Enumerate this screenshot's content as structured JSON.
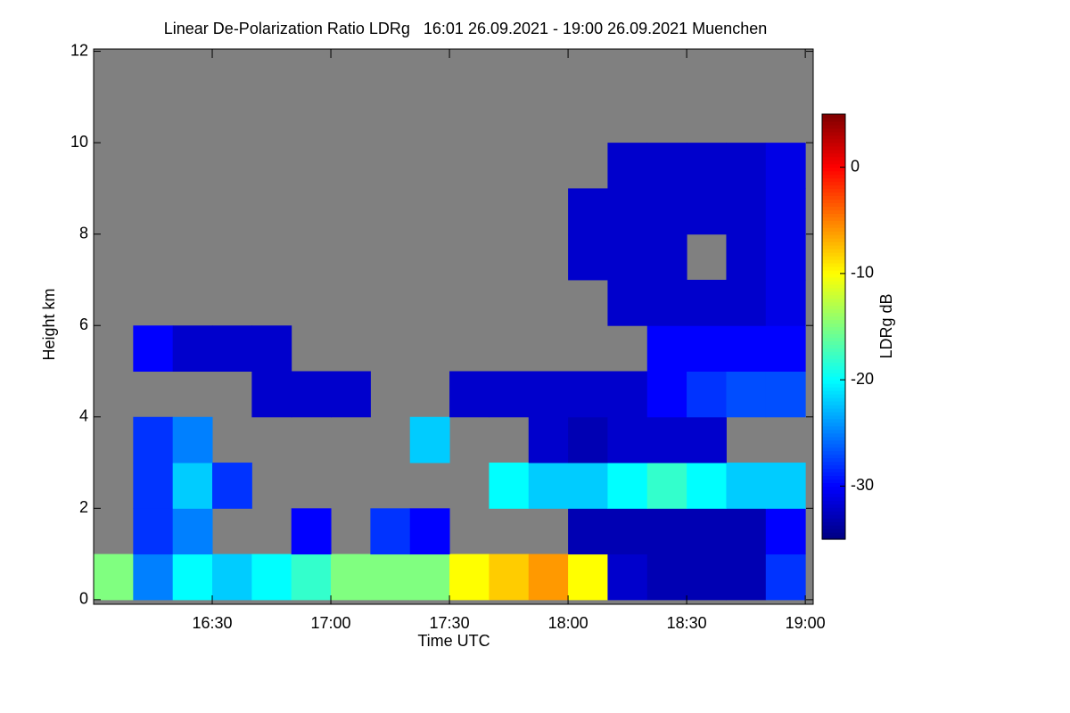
{
  "chart_data": {
    "type": "heatmap",
    "title": "Linear De-Polarization Ratio LDRg   16:01 26.09.2021 - 19:00 26.09.2021 Muenchen",
    "x_label": "Time UTC",
    "y_label": "Height km",
    "colorbar_label": "LDRg dB",
    "missing_color": "#808080",
    "colormap": "jet",
    "x_edges": [
      960,
      970,
      980,
      990,
      1000,
      1010,
      1020,
      1030,
      1040,
      1050,
      1060,
      1070,
      1080,
      1090,
      1100,
      1110,
      1120,
      1130,
      1140
    ],
    "y_edges": [
      0,
      1,
      2,
      3,
      4,
      5,
      6,
      7,
      8,
      9,
      10,
      11,
      12
    ],
    "values": [
      [
        -15,
        -25,
        -20,
        -22,
        -20,
        -18,
        -15,
        -15,
        -15,
        -10,
        -8,
        -6,
        -10,
        -32,
        -33,
        -33,
        -33,
        -28
      ],
      [
        null,
        -28,
        -25,
        null,
        null,
        -30,
        null,
        -28,
        -30,
        null,
        null,
        null,
        -33,
        -33,
        -33,
        -33,
        -33,
        -30
      ],
      [
        null,
        -28,
        -22,
        -28,
        null,
        null,
        null,
        null,
        null,
        null,
        -20,
        -22,
        -22,
        -20,
        -18,
        -20,
        -22,
        -22
      ],
      [
        null,
        -28,
        -25,
        null,
        null,
        null,
        null,
        null,
        -22,
        null,
        null,
        -32,
        -33,
        -32,
        -32,
        -32,
        null,
        null
      ],
      [
        null,
        null,
        null,
        null,
        -32,
        -32,
        -32,
        null,
        null,
        -32,
        -32,
        -32,
        -32,
        -32,
        -30,
        -28,
        -27,
        -27
      ],
      [
        null,
        -30,
        -32,
        -32,
        -32,
        null,
        null,
        null,
        null,
        null,
        null,
        null,
        null,
        null,
        -30,
        -30,
        -30,
        -30
      ],
      [
        null,
        null,
        null,
        null,
        null,
        null,
        null,
        null,
        null,
        null,
        null,
        null,
        null,
        -32,
        -32,
        -32,
        -32,
        -31
      ],
      [
        null,
        null,
        null,
        null,
        null,
        null,
        null,
        null,
        null,
        null,
        null,
        null,
        -32,
        -32,
        -32,
        null,
        -32,
        -31
      ],
      [
        null,
        null,
        null,
        null,
        null,
        null,
        null,
        null,
        null,
        null,
        null,
        null,
        -32,
        -32,
        -32,
        -32,
        -32,
        -31
      ],
      [
        null,
        null,
        null,
        null,
        null,
        null,
        null,
        null,
        null,
        null,
        null,
        null,
        null,
        -32,
        -32,
        -32,
        -32,
        -31
      ],
      [
        null,
        null,
        null,
        null,
        null,
        null,
        null,
        null,
        null,
        null,
        null,
        null,
        null,
        null,
        null,
        null,
        null,
        null
      ],
      [
        null,
        null,
        null,
        null,
        null,
        null,
        null,
        null,
        null,
        null,
        null,
        null,
        null,
        null,
        null,
        null,
        null,
        null
      ]
    ],
    "xlim": [
      960,
      1142
    ],
    "xticks": [
      {
        "value": 990,
        "label": "16:30"
      },
      {
        "value": 1020,
        "label": "17:00"
      },
      {
        "value": 1050,
        "label": "17:30"
      },
      {
        "value": 1080,
        "label": "18:00"
      },
      {
        "value": 1110,
        "label": "18:30"
      },
      {
        "value": 1140,
        "label": "19:00"
      }
    ],
    "ylim": [
      -0.1,
      12.05
    ],
    "yticks": [
      0,
      2,
      4,
      6,
      8,
      10,
      12
    ],
    "zlim": [
      -35,
      5
    ],
    "zticks": [
      -30,
      -20,
      -10,
      0
    ]
  }
}
